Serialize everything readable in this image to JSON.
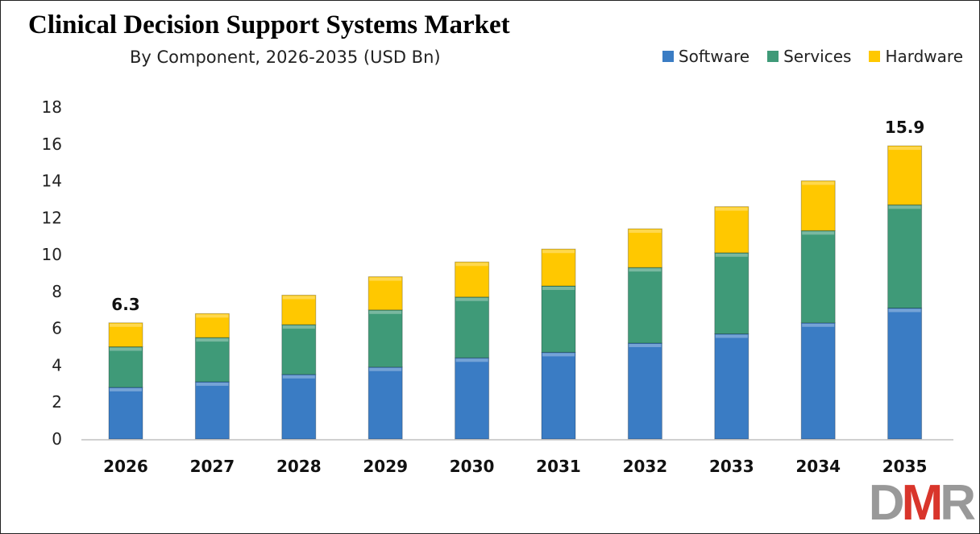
{
  "chart_data": {
    "type": "bar",
    "stacked": true,
    "title": "Clinical Decision Support Systems Market",
    "subtitle": "By Component, 2026-2035 (USD Bn)",
    "xlabel": "",
    "ylabel": "",
    "categories": [
      "2026",
      "2027",
      "2028",
      "2029",
      "2030",
      "2031",
      "2032",
      "2033",
      "2034",
      "2035"
    ],
    "series": [
      {
        "name": "Software",
        "color": "#3a7cc4",
        "values": [
          2.8,
          3.1,
          3.5,
          3.9,
          4.4,
          4.7,
          5.2,
          5.7,
          6.3,
          7.1
        ]
      },
      {
        "name": "Services",
        "color": "#3f9a78",
        "values": [
          2.2,
          2.4,
          2.7,
          3.1,
          3.3,
          3.6,
          4.1,
          4.4,
          5.0,
          5.6
        ]
      },
      {
        "name": "Hardware",
        "color": "#ffc800",
        "values": [
          1.3,
          1.3,
          1.6,
          1.8,
          1.9,
          2.0,
          2.1,
          2.5,
          2.7,
          3.2
        ]
      }
    ],
    "data_labels": [
      {
        "category": "2026",
        "text": "6.3"
      },
      {
        "category": "2035",
        "text": "15.9"
      }
    ],
    "ylim": [
      0,
      18
    ],
    "yticks": [
      "0",
      "2",
      "4",
      "6",
      "8",
      "10",
      "12",
      "14",
      "16",
      "18"
    ],
    "grid": false,
    "legend_position": "top-right"
  },
  "logo": {
    "text": "DMR",
    "colors": [
      "#999999",
      "#d9352b"
    ]
  }
}
